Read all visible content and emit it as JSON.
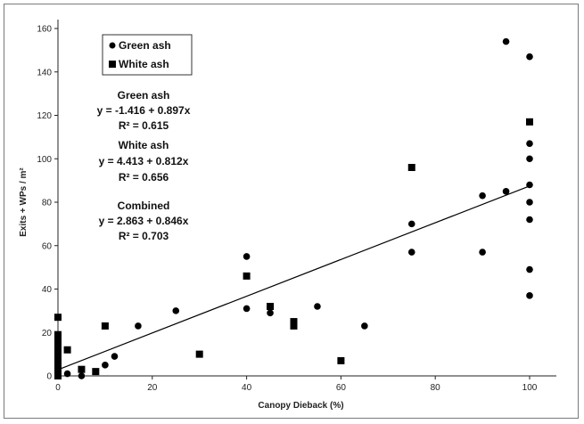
{
  "chart_data": {
    "type": "scatter",
    "xlabel": "Canopy Dieback (%)",
    "ylabel": "Exits + WPs / m²",
    "xlim": [
      0,
      100
    ],
    "ylim": [
      0,
      160
    ],
    "x_ticks": [
      0,
      20,
      40,
      60,
      80,
      100
    ],
    "y_ticks": [
      0,
      20,
      40,
      60,
      80,
      100,
      120,
      140,
      160
    ],
    "grid": false,
    "legend_position": "top-left",
    "series": [
      {
        "name": "Green ash",
        "marker": "circle",
        "color": "#000000",
        "x": [
          0,
          2,
          5,
          10,
          12,
          17,
          25,
          40,
          40,
          45,
          55,
          65,
          75,
          75,
          90,
          90,
          95,
          95,
          100,
          100,
          100,
          100,
          100,
          100,
          100,
          100
        ],
        "y": [
          3,
          1,
          0,
          5,
          9,
          23,
          30,
          31,
          55,
          29,
          32,
          23,
          57,
          70,
          57,
          83,
          85,
          154,
          37,
          49,
          72,
          80,
          88,
          100,
          107,
          147
        ]
      },
      {
        "name": "White ash",
        "marker": "square",
        "color": "#000000",
        "x": [
          0,
          0,
          0,
          0,
          0,
          0,
          0,
          0,
          0,
          2,
          5,
          8,
          10,
          30,
          40,
          45,
          50,
          50,
          60,
          75,
          100
        ],
        "y": [
          0,
          2,
          5,
          8,
          11,
          14,
          17,
          19,
          27,
          12,
          3,
          2,
          23,
          10,
          46,
          32,
          23,
          25,
          7,
          96,
          117
        ]
      }
    ],
    "regression_line": {
      "intercept": 2.863,
      "slope": 0.846,
      "x_range": [
        0,
        100
      ]
    },
    "annotations": [
      {
        "title": "Green ash",
        "equation": "y = -1.416 + 0.897x",
        "r2": "R² = 0.615"
      },
      {
        "title": "White ash",
        "equation": "y = 4.413 + 0.812x",
        "r2": "R² = 0.656"
      },
      {
        "title": "Combined",
        "equation": "y = 2.863 + 0.846x",
        "r2": "R² = 0.703"
      }
    ]
  }
}
